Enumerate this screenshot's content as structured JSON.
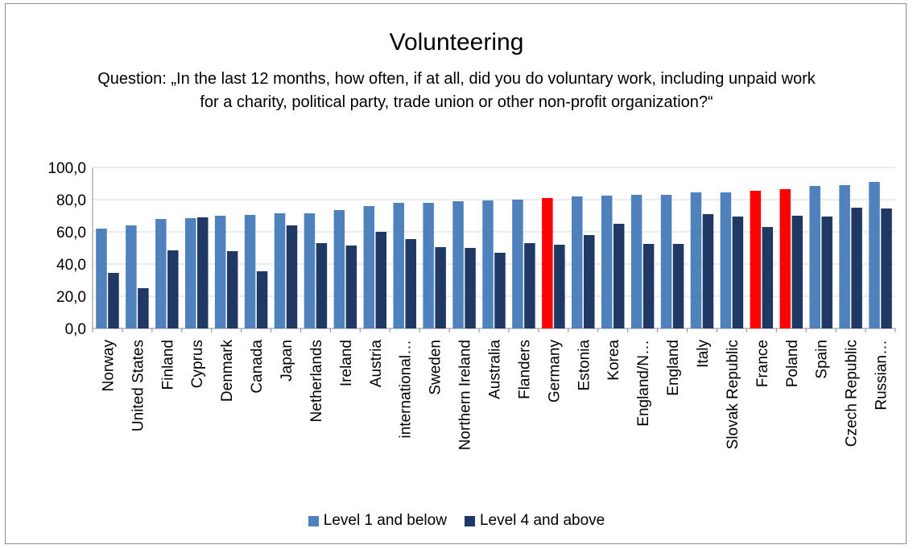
{
  "colors": {
    "level1": "#4f81bd",
    "level4": "#1f3864",
    "highlight": "#ff0000",
    "axis": "#8c8c8c",
    "grid": "#d9d9d9"
  },
  "chart_data": {
    "type": "bar",
    "title": "Volunteering",
    "subtitle": "Question: „In the last 12 months, how often, if at all, did you do voluntary work, including unpaid work for a charity, political party, trade union or other non-profit organization?“",
    "xlabel": "",
    "ylabel": "",
    "ylim": [
      0,
      100
    ],
    "yticks": [
      "0,0",
      "20,0",
      "40,0",
      "60,0",
      "80,0",
      "100,0"
    ],
    "grid": true,
    "legend_position": "bottom",
    "categories": [
      "Norway",
      "United States",
      "Finland",
      "Cyprus",
      "Denmark",
      "Canada",
      "Japan",
      "Netherlands",
      "Ireland",
      "Austria",
      "international…",
      "Sweden",
      "Northern Ireland",
      "Australia",
      "Flanders",
      "Germany",
      "Estonia",
      "Korea",
      "England/N…",
      "England",
      "Italy",
      "Slovak Republic",
      "France",
      "Poland",
      "Spain",
      "Czech Republic",
      "Russian…"
    ],
    "highlighted_categories": [
      "Germany",
      "France",
      "Poland"
    ],
    "series": [
      {
        "name": "Level 1 and below",
        "values": [
          62,
          64,
          68,
          68.5,
          70,
          70.5,
          71.5,
          71.5,
          73.5,
          76,
          78,
          78,
          79,
          79.5,
          80,
          81,
          82,
          82.5,
          83,
          83,
          84.5,
          84.5,
          85.5,
          86.5,
          88.5,
          89,
          91
        ]
      },
      {
        "name": "Level 4 and above",
        "values": [
          34.5,
          25,
          48.5,
          69,
          48,
          35.5,
          64,
          53,
          51.5,
          60,
          55.5,
          50.5,
          50,
          47,
          53,
          52,
          58,
          65,
          52.5,
          52.5,
          71,
          69.5,
          63,
          70,
          69.5,
          75,
          74.5
        ]
      }
    ]
  }
}
